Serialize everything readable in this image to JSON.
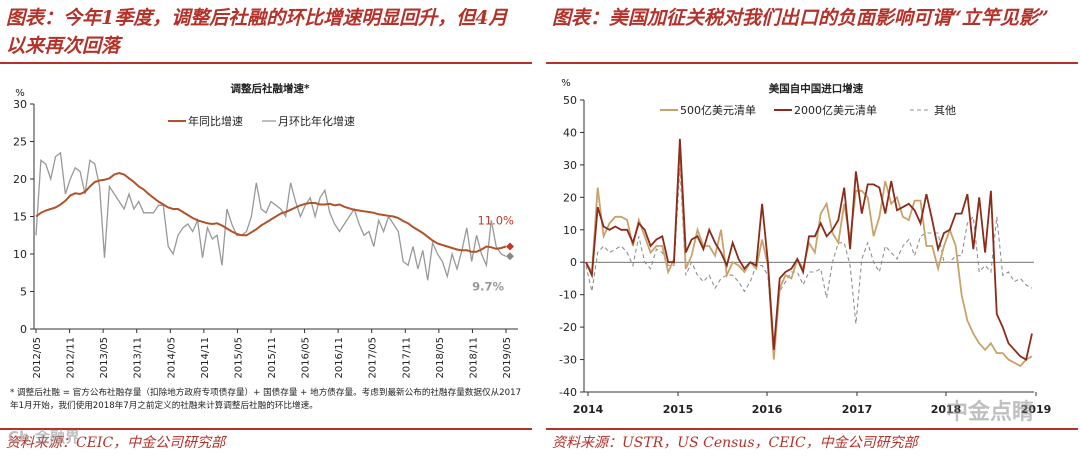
{
  "left": {
    "heading": "图表：今年1季度，调整后社融的环比增速明显回升，但4月以来再次回落",
    "source": "资料来源：CEIC，中金公司研究部",
    "footnote": "* 调整后社融 = 官方公布社融存量（扣除地方政府专项债存量）+ 国债存量 + 地方债存量。考虑到最新公布的社融存量数据仅从2017年1月开始，我们使用2018年7月之前定义的社融来计算调整后社融的环比增速。",
    "watermark": "Ch 金融界"
  },
  "right": {
    "heading": "图表：美国加征关税对我们出口的负面影响可谓“立竿见影”",
    "source": "资料来源：USTR，US Census，CEIC，中金公司研究部",
    "watermark": "中金点睛"
  },
  "colors": {
    "accent": "#b5322a",
    "yoy_line": "#b0532a",
    "mom_line": "#999999",
    "list500": "#c9a26b",
    "list2000": "#8b2b1a",
    "other": "#909090"
  },
  "chart_data": [
    {
      "type": "line",
      "title": "调整后社融增速*",
      "ylabel": "%",
      "ylim": [
        0,
        30
      ],
      "yticks": [
        0,
        5,
        10,
        15,
        20,
        25,
        30
      ],
      "xlabel": "",
      "xticks": [
        "2012/05",
        "2012/11",
        "2013/05",
        "2013/11",
        "2014/05",
        "2014/11",
        "2015/05",
        "2015/11",
        "2016/05",
        "2016/11",
        "2017/05",
        "2017/11",
        "2018/05",
        "2018/11",
        "2019/05"
      ],
      "legend": "top-center",
      "series": [
        {
          "name": "年同比增速",
          "color": "#b0532a",
          "values": [
            15.0,
            15.5,
            15.8,
            16.0,
            16.2,
            16.6,
            17.1,
            17.8,
            18.1,
            18.0,
            18.3,
            19.0,
            19.6,
            19.8,
            19.9,
            20.1,
            20.6,
            20.8,
            20.6,
            20.1,
            19.6,
            19.0,
            18.6,
            18.0,
            17.5,
            17.0,
            16.6,
            16.2,
            16.0,
            16.0,
            15.6,
            15.2,
            14.8,
            14.5,
            14.3,
            14.1,
            14.0,
            14.1,
            13.8,
            13.4,
            13.0,
            12.7,
            12.5,
            12.5,
            12.9,
            13.3,
            13.8,
            14.2,
            14.6,
            15.0,
            15.4,
            15.6,
            15.9,
            16.2,
            16.5,
            16.7,
            16.8,
            16.8,
            16.6,
            16.6,
            16.7,
            16.5,
            16.6,
            16.3,
            16.1,
            15.9,
            15.8,
            15.7,
            15.6,
            15.5,
            15.3,
            15.2,
            15.1,
            15.0,
            14.8,
            14.4,
            14.1,
            13.6,
            13.2,
            12.8,
            12.3,
            11.8,
            11.4,
            11.2,
            11.0,
            10.8,
            10.6,
            10.5,
            10.5,
            10.3,
            10.3,
            10.6,
            11.0,
            10.9,
            10.7,
            10.8,
            11.0
          ]
        },
        {
          "name": "月环比年化增速",
          "color": "#999999",
          "values": [
            12.5,
            22.5,
            22.0,
            20.0,
            23.0,
            23.5,
            18.0,
            20.0,
            21.5,
            21.0,
            18.0,
            22.5,
            22.0,
            19.0,
            9.5,
            19.0,
            18.0,
            17.0,
            16.0,
            18.0,
            16.0,
            17.0,
            15.5,
            15.5,
            15.5,
            16.5,
            16.5,
            11.0,
            10.0,
            12.5,
            13.5,
            14.0,
            13.0,
            14.5,
            9.5,
            13.5,
            12.0,
            12.5,
            8.5,
            16.0,
            14.0,
            12.5,
            12.5,
            13.0,
            15.0,
            19.5,
            16.0,
            15.5,
            17.0,
            16.5,
            16.0,
            15.0,
            19.5,
            17.0,
            15.0,
            16.5,
            17.5,
            15.0,
            17.5,
            18.5,
            15.5,
            14.0,
            13.0,
            14.0,
            15.0,
            16.0,
            14.0,
            12.5,
            13.0,
            11.0,
            14.5,
            13.0,
            15.0,
            14.0,
            13.0,
            9.0,
            8.5,
            11.0,
            8.0,
            10.5,
            6.5,
            11.5,
            10.0,
            9.0,
            7.0,
            10.0,
            8.0,
            10.5,
            13.5,
            9.0,
            12.5,
            10.0,
            8.5,
            14.5,
            11.0,
            10.0,
            9.7
          ]
        }
      ],
      "annotations": [
        {
          "text": "11.0%",
          "color": "#c0392b"
        },
        {
          "text": "9.7%",
          "color": "#999999"
        }
      ]
    },
    {
      "type": "line",
      "title": "美国自中国进口增速",
      "ylabel": "%",
      "ylim": [
        -40,
        50
      ],
      "yticks": [
        -40,
        -30,
        -20,
        -10,
        0,
        10,
        20,
        30,
        40,
        50
      ],
      "xticks": [
        "2014",
        "2015",
        "2016",
        "2017",
        "2018",
        "2019"
      ],
      "legend": "top-center",
      "series": [
        {
          "name": "500亿美元清单",
          "color": "#c9a26b",
          "values": [
            0,
            -3,
            23,
            8,
            12,
            14,
            14,
            13,
            5,
            13,
            8,
            3,
            5,
            5,
            -3,
            1,
            36,
            -2,
            2,
            10,
            5,
            5,
            2,
            10,
            -4,
            0,
            -1,
            -3,
            0,
            -2,
            7,
            -1,
            -30,
            -8,
            -4,
            -5,
            1,
            -2,
            6,
            3,
            15,
            18,
            9,
            6,
            18,
            7,
            22,
            22,
            20,
            8,
            14,
            25,
            18,
            20,
            14,
            13,
            19,
            19,
            5,
            5,
            -2,
            5,
            10,
            5,
            -10,
            -18,
            -22,
            -25,
            -27,
            -25,
            -28,
            -28,
            -30,
            -31,
            -32,
            -30,
            -29
          ]
        },
        {
          "name": "2000亿美元清单",
          "color": "#8b2b1a",
          "values": [
            0,
            -4,
            17,
            11,
            10,
            11,
            10,
            10,
            6,
            12,
            10,
            5,
            7,
            8,
            0,
            0,
            38,
            3,
            7,
            8,
            4,
            10,
            6,
            3,
            -1,
            6,
            1,
            -2,
            0,
            -1,
            18,
            0,
            -27,
            -5,
            -3,
            -2,
            1,
            -3,
            8,
            8,
            12,
            8,
            10,
            13,
            23,
            4,
            28,
            15,
            24,
            24,
            23,
            15,
            25,
            16,
            17,
            18,
            16,
            12,
            21,
            13,
            4,
            9,
            10,
            15,
            15,
            21,
            4,
            20,
            3,
            22,
            -16,
            -20,
            -25,
            -27,
            -29,
            -30,
            -22
          ]
        },
        {
          "name": "其他",
          "color": "#909090",
          "values": [
            -1,
            -9,
            3,
            5,
            3,
            4,
            5,
            3,
            -1,
            8,
            0,
            -2,
            4,
            3,
            -1,
            -1,
            29,
            -4,
            0,
            -4,
            -6,
            -4,
            -8,
            -5,
            -4,
            -4,
            -6,
            -9,
            -6,
            -1,
            -1,
            -4,
            -29,
            -9,
            -6,
            -3,
            -3,
            -7,
            -3,
            -3,
            -2,
            -11,
            0,
            6,
            6,
            -1,
            -19,
            1,
            6,
            0,
            -3,
            5,
            3,
            1,
            5,
            7,
            2,
            8,
            9,
            9,
            9,
            0,
            0,
            2,
            2,
            12,
            14,
            -3,
            -1,
            -3,
            14,
            -4,
            -3,
            -6,
            -5,
            -7,
            -8
          ]
        }
      ]
    }
  ]
}
